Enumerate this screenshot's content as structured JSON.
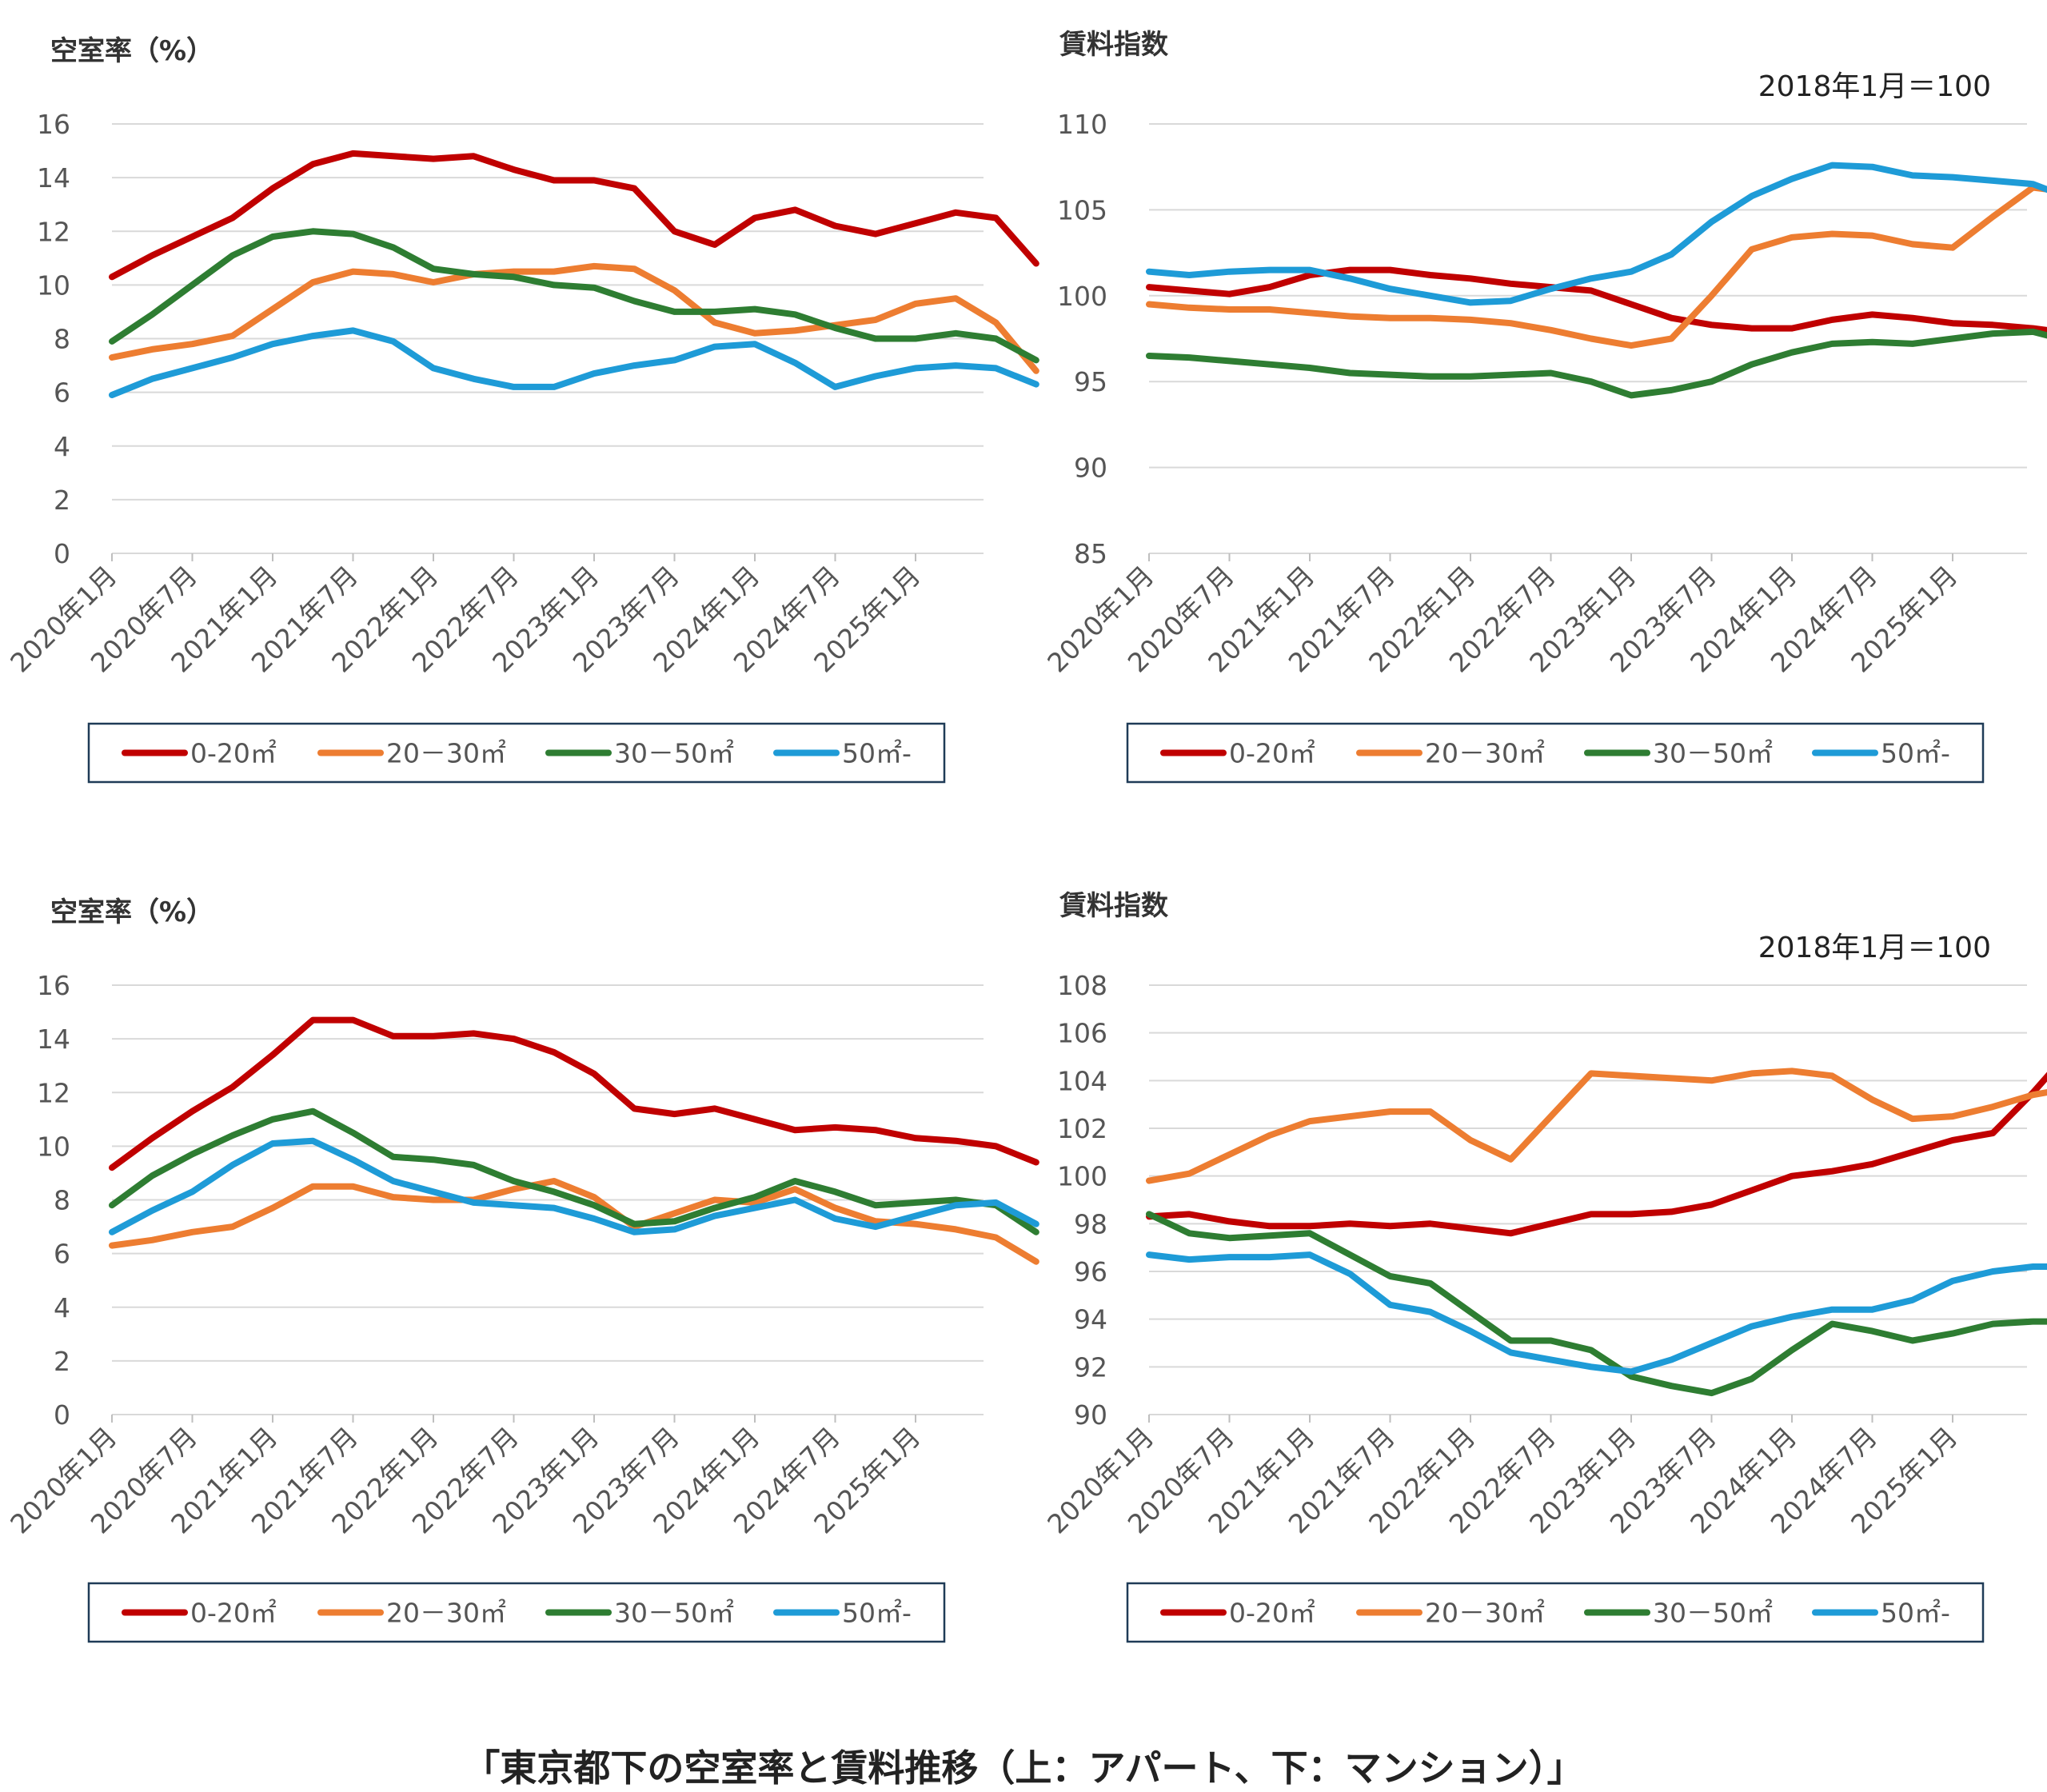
{
  "caption": "「東京都下の空室率と賃料推移（上：アパート、下：マンション）」",
  "colors": {
    "0-20": "#C00000",
    "20-30": "#ED7D31",
    "30-50": "#2E7D32",
    "50+": "#1E9BD7"
  },
  "chart_data": [
    {
      "id": "apartment-vacancy",
      "type": "line",
      "title": "空室率（%）",
      "subtitle": "",
      "ylim": [
        0,
        16
      ],
      "yticks": [
        "0",
        "2",
        "4",
        "6",
        "8",
        "10",
        "12",
        "14",
        "16"
      ],
      "x_tick_labels": [
        "2020年1月",
        "2020年7月",
        "2021年1月",
        "2021年7月",
        "2022年1月",
        "2022年7月",
        "2023年1月",
        "2023年7月",
        "2024年1月",
        "2024年7月",
        "2025年1月"
      ],
      "x_start": "2020年1月",
      "x_end": "2025年7月",
      "grid": true,
      "legend": [
        "0-20㎡",
        "20－30㎡",
        "30－50㎡",
        "50㎡-"
      ],
      "series": [
        {
          "name": "0-20㎡",
          "values": [
            10.3,
            11.1,
            11.8,
            12.5,
            13.6,
            14.5,
            14.9,
            14.8,
            14.7,
            14.8,
            14.3,
            13.9,
            13.9,
            13.6,
            12.0,
            11.5,
            12.5,
            12.8,
            12.2,
            11.9,
            12.3,
            12.7,
            12.5,
            10.8
          ]
        },
        {
          "name": "20－30㎡",
          "values": [
            7.3,
            7.6,
            7.8,
            8.1,
            9.1,
            10.1,
            10.5,
            10.4,
            10.1,
            10.4,
            10.5,
            10.5,
            10.7,
            10.6,
            9.8,
            8.6,
            8.2,
            8.3,
            8.5,
            8.7,
            9.3,
            9.5,
            8.6,
            6.8
          ]
        },
        {
          "name": "30－50㎡",
          "values": [
            7.9,
            8.9,
            10.0,
            11.1,
            11.8,
            12.0,
            11.9,
            11.4,
            10.6,
            10.4,
            10.3,
            10.0,
            9.9,
            9.4,
            9.0,
            9.0,
            9.1,
            8.9,
            8.4,
            8.0,
            8.0,
            8.2,
            8.0,
            7.2
          ]
        },
        {
          "name": "50㎡-",
          "values": [
            5.9,
            6.5,
            6.9,
            7.3,
            7.8,
            8.1,
            8.3,
            7.9,
            6.9,
            6.5,
            6.2,
            6.2,
            6.7,
            7.0,
            7.2,
            7.7,
            7.8,
            7.1,
            6.2,
            6.6,
            6.9,
            7.0,
            6.9,
            6.3
          ]
        }
      ]
    },
    {
      "id": "apartment-rent",
      "type": "line",
      "title": "賃料指数",
      "subtitle": "2018年1月＝100",
      "ylim": [
        85,
        110
      ],
      "yticks": [
        "85",
        "90",
        "95",
        "100",
        "105",
        "110"
      ],
      "x_tick_labels": [
        "2020年1月",
        "2020年7月",
        "2021年1月",
        "2021年7月",
        "2022年1月",
        "2022年7月",
        "2023年1月",
        "2023年7月",
        "2024年1月",
        "2024年7月",
        "2025年1月"
      ],
      "x_start": "2020年1月",
      "x_end": "2025年7月",
      "grid": true,
      "legend": [
        "0-20㎡",
        "20－30㎡",
        "30－50㎡",
        "50㎡-"
      ],
      "series": [
        {
          "name": "0-20㎡",
          "values": [
            100.5,
            100.3,
            100.1,
            100.5,
            101.2,
            101.5,
            101.5,
            101.2,
            101.0,
            100.7,
            100.5,
            100.3,
            99.5,
            98.7,
            98.3,
            98.1,
            98.1,
            98.6,
            98.9,
            98.7,
            98.4,
            98.3,
            98.1,
            97.8
          ]
        },
        {
          "name": "20－30㎡",
          "values": [
            99.5,
            99.3,
            99.2,
            99.2,
            99.0,
            98.8,
            98.7,
            98.7,
            98.6,
            98.4,
            98.0,
            97.5,
            97.1,
            97.5,
            100.0,
            102.7,
            103.4,
            103.6,
            103.5,
            103.0,
            102.8,
            104.6,
            106.3,
            106.0
          ]
        },
        {
          "name": "30－50㎡",
          "values": [
            96.5,
            96.4,
            96.2,
            96.0,
            95.8,
            95.5,
            95.4,
            95.3,
            95.3,
            95.4,
            95.5,
            95.0,
            94.2,
            94.5,
            95.0,
            96.0,
            96.7,
            97.2,
            97.3,
            97.2,
            97.5,
            97.8,
            97.9,
            97.3
          ]
        },
        {
          "name": "50㎡-",
          "values": [
            101.4,
            101.2,
            101.4,
            101.5,
            101.5,
            101.0,
            100.4,
            100.0,
            99.6,
            99.7,
            100.4,
            101.0,
            101.4,
            102.4,
            104.3,
            105.8,
            106.8,
            107.6,
            107.5,
            107.0,
            106.9,
            106.7,
            106.5,
            105.6
          ]
        }
      ]
    },
    {
      "id": "mansion-vacancy",
      "type": "line",
      "title": "空室率（%）",
      "subtitle": "",
      "ylim": [
        0,
        16
      ],
      "yticks": [
        "0",
        "2",
        "4",
        "6",
        "8",
        "10",
        "12",
        "14",
        "16"
      ],
      "x_tick_labels": [
        "2020年1月",
        "2020年7月",
        "2021年1月",
        "2021年7月",
        "2022年1月",
        "2022年7月",
        "2023年1月",
        "2023年7月",
        "2024年1月",
        "2024年7月",
        "2025年1月"
      ],
      "x_start": "2020年1月",
      "x_end": "2025年7月",
      "grid": true,
      "legend": [
        "0-20㎡",
        "20－30㎡",
        "30－50㎡",
        "50㎡-"
      ],
      "series": [
        {
          "name": "0-20㎡",
          "values": [
            9.2,
            10.3,
            11.3,
            12.2,
            13.4,
            14.7,
            14.7,
            14.1,
            14.1,
            14.2,
            14.0,
            13.5,
            12.7,
            11.4,
            11.2,
            11.4,
            11.0,
            10.6,
            10.7,
            10.6,
            10.3,
            10.2,
            10.0,
            9.4
          ]
        },
        {
          "name": "20－30㎡",
          "values": [
            6.3,
            6.5,
            6.8,
            7.0,
            7.7,
            8.5,
            8.5,
            8.1,
            8.0,
            8.0,
            8.4,
            8.7,
            8.1,
            7.0,
            7.5,
            8.0,
            7.9,
            8.4,
            7.7,
            7.2,
            7.1,
            6.9,
            6.6,
            5.7
          ]
        },
        {
          "name": "30－50㎡",
          "values": [
            7.8,
            8.9,
            9.7,
            10.4,
            11.0,
            11.3,
            10.5,
            9.6,
            9.5,
            9.3,
            8.7,
            8.3,
            7.8,
            7.1,
            7.2,
            7.7,
            8.1,
            8.7,
            8.3,
            7.8,
            7.9,
            8.0,
            7.8,
            6.8
          ]
        },
        {
          "name": "50㎡-",
          "values": [
            6.8,
            7.6,
            8.3,
            9.3,
            10.1,
            10.2,
            9.5,
            8.7,
            8.3,
            7.9,
            7.8,
            7.7,
            7.3,
            6.8,
            6.9,
            7.4,
            7.7,
            8.0,
            7.3,
            7.0,
            7.4,
            7.8,
            7.9,
            7.1
          ]
        }
      ]
    },
    {
      "id": "mansion-rent",
      "type": "line",
      "title": "賃料指数",
      "subtitle": "2018年1月＝100",
      "ylim": [
        90,
        108
      ],
      "yticks": [
        "90",
        "92",
        "94",
        "96",
        "98",
        "100",
        "102",
        "104",
        "106",
        "108"
      ],
      "x_tick_labels": [
        "2020年1月",
        "2020年7月",
        "2021年1月",
        "2021年7月",
        "2022年1月",
        "2022年7月",
        "2023年1月",
        "2023年7月",
        "2024年1月",
        "2024年7月",
        "2025年1月"
      ],
      "x_start": "2020年1月",
      "x_end": "2025年7月",
      "grid": true,
      "legend": [
        "0-20㎡",
        "20－30㎡",
        "30－50㎡",
        "50㎡-"
      ],
      "series": [
        {
          "name": "0-20㎡",
          "values": [
            98.3,
            98.4,
            98.1,
            97.9,
            97.9,
            98.0,
            97.9,
            98.0,
            97.8,
            97.6,
            98.0,
            98.4,
            98.4,
            98.5,
            98.8,
            99.4,
            100.0,
            100.2,
            100.5,
            101.0,
            101.5,
            101.8,
            103.5,
            105.4
          ]
        },
        {
          "name": "20－30㎡",
          "values": [
            99.8,
            100.1,
            100.9,
            101.7,
            102.3,
            102.5,
            102.7,
            102.7,
            101.5,
            100.7,
            102.5,
            104.3,
            104.2,
            104.1,
            104.0,
            104.3,
            104.4,
            104.2,
            103.2,
            102.4,
            102.5,
            102.9,
            103.4,
            103.7
          ]
        },
        {
          "name": "30－50㎡",
          "values": [
            98.4,
            97.6,
            97.4,
            97.5,
            97.6,
            96.7,
            95.8,
            95.5,
            94.3,
            93.1,
            93.1,
            92.7,
            91.6,
            91.2,
            90.9,
            91.5,
            92.7,
            93.8,
            93.5,
            93.1,
            93.4,
            93.8,
            93.9,
            93.9
          ]
        },
        {
          "name": "50㎡-",
          "values": [
            96.7,
            96.5,
            96.6,
            96.6,
            96.7,
            95.9,
            94.6,
            94.3,
            93.5,
            92.6,
            92.3,
            92.0,
            91.8,
            92.3,
            93.0,
            93.7,
            94.1,
            94.4,
            94.4,
            94.8,
            95.6,
            96.0,
            96.2,
            96.2
          ]
        }
      ]
    }
  ]
}
